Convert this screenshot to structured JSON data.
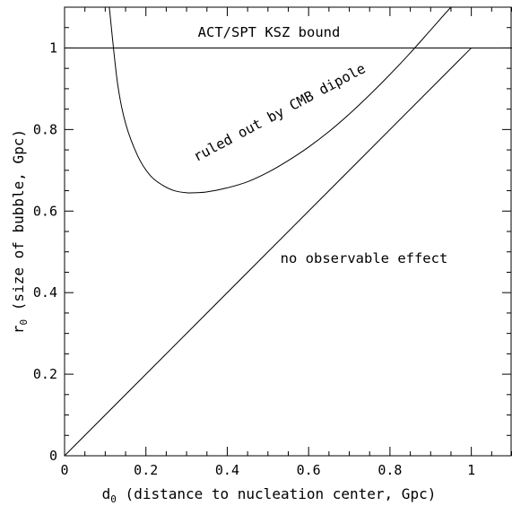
{
  "chart_data": {
    "type": "line",
    "xlabel": "d₀ (distance to nucleation center, Gpc)",
    "xlabel_main": "d",
    "xlabel_sub": "0",
    "xlabel_rest": " (distance to nucleation center, Gpc)",
    "ylabel": "r₀ (size of bubble, Gpc)",
    "ylabel_main": "r",
    "ylabel_sub": "0",
    "ylabel_rest": " (size of bubble, Gpc)",
    "xlim": [
      0,
      1.1
    ],
    "ylim": [
      0,
      1.1
    ],
    "xticks": [
      "0",
      "0.2",
      "0.4",
      "0.6",
      "0.8",
      "1"
    ],
    "yticks": [
      "0",
      "0.2",
      "0.4",
      "0.6",
      "0.8",
      "1"
    ],
    "grid": false,
    "annotations": [
      "ACT/SPT KSZ bound",
      "ruled out by CMB dipole",
      "no observable effect"
    ],
    "series": [
      {
        "kind": "horizontal",
        "values": {
          "y": 1.0
        }
      },
      {
        "kind": "diagonal",
        "x": [
          0,
          1.0
        ],
        "y": [
          0,
          1.0
        ]
      },
      {
        "kind": "dipole-curve",
        "x": [
          0.11,
          0.13,
          0.15,
          0.18,
          0.21,
          0.24,
          0.27,
          0.3,
          0.32,
          0.35,
          0.4,
          0.45,
          0.5,
          0.55,
          0.6,
          0.65,
          0.7,
          0.75,
          0.8,
          0.85,
          0.9,
          0.95,
          1.0
        ],
        "y": [
          1.1,
          0.915,
          0.815,
          0.735,
          0.688,
          0.664,
          0.65,
          0.645,
          0.645,
          0.647,
          0.657,
          0.672,
          0.695,
          0.724,
          0.757,
          0.795,
          0.838,
          0.885,
          0.935,
          0.988,
          1.044,
          1.1,
          1.15
        ]
      }
    ]
  }
}
